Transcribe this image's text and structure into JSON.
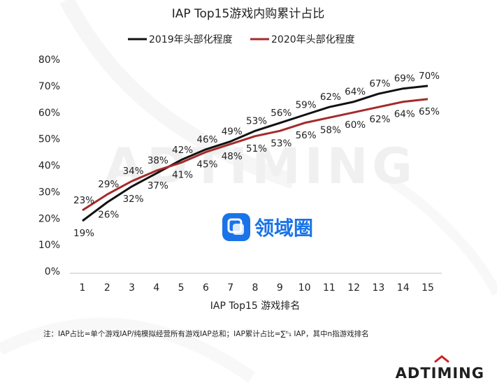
{
  "chart_data": {
    "type": "line",
    "title": "IAP Top15游戏内购累计占比",
    "xlabel": "IAP Top15 游戏排名",
    "ylabel": "",
    "x": [
      1,
      2,
      3,
      4,
      5,
      6,
      7,
      8,
      9,
      10,
      11,
      12,
      13,
      14,
      15
    ],
    "ylim": [
      0,
      80
    ],
    "yticks": [
      "0%",
      "10%",
      "20%",
      "30%",
      "40%",
      "50%",
      "60%",
      "70%",
      "80%"
    ],
    "grid": false,
    "legend_position": "top",
    "series": [
      {
        "name": "2019年头部化程度",
        "color": "#111111",
        "values": [
          19,
          26,
          32,
          37,
          42,
          46,
          49,
          53,
          56,
          59,
          62,
          64,
          67,
          69,
          70
        ],
        "labels": [
          "19%",
          "26%",
          "32%",
          "37%",
          "42%",
          "46%",
          "49%",
          "53%",
          "56%",
          "59%",
          "62%",
          "64%",
          "67%",
          "69%",
          "70%"
        ]
      },
      {
        "name": "2020年头部化程度",
        "color": "#a52a2a",
        "values": [
          23,
          29,
          34,
          38,
          41,
          45,
          48,
          51,
          53,
          56,
          58,
          60,
          62,
          64,
          65
        ],
        "labels": [
          "23%",
          "29%",
          "34%",
          "38%",
          "41%",
          "45%",
          "48%",
          "51%",
          "53%",
          "56%",
          "58%",
          "60%",
          "62%",
          "64%",
          "65%"
        ]
      }
    ]
  },
  "footnote": "注：IAP占比=单个游戏IAP/纯模拟经营所有游戏IAP总和；IAP累计占比=∑ⁿ₁ IAP，其中n指游戏排名",
  "watermark": {
    "text": "领域圈",
    "icon": "lingyuquan-logo-icon",
    "color": "#1a73e8"
  },
  "brand": {
    "text": "ADTIMING",
    "background_text": "ADTIMING"
  }
}
